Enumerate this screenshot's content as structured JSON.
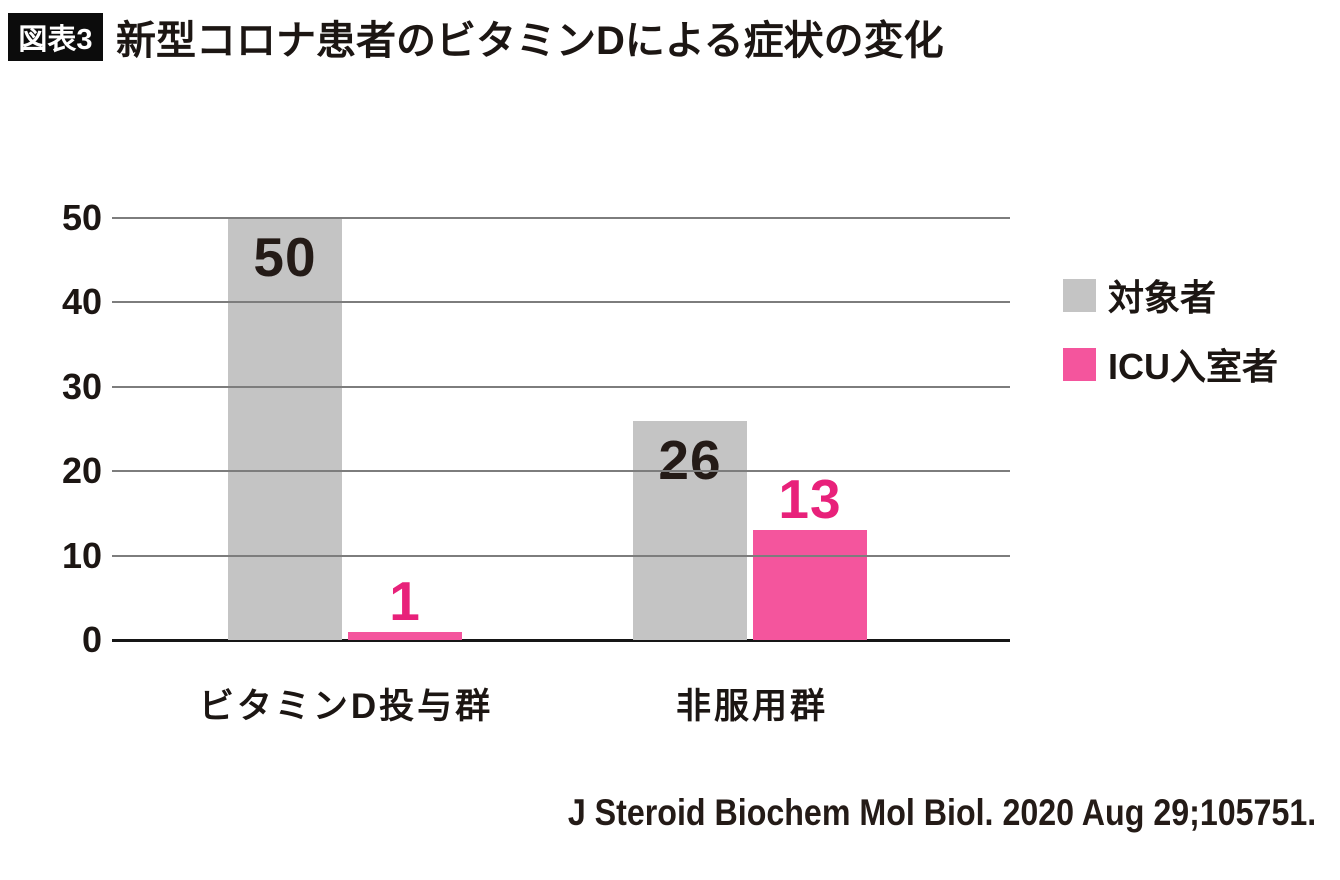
{
  "header": {
    "badge": "図表3",
    "title": "新型コロナ患者のビタミンDによる症状の変化"
  },
  "chart_data": {
    "type": "bar",
    "title": "新型コロナ患者のビタミンDによる症状の変化",
    "categories": [
      "ビタミンD投与群",
      "非服用群"
    ],
    "series": [
      {
        "name": "対象者",
        "values": [
          50,
          26
        ],
        "color": "#c4c4c4",
        "label_color": "#241b17"
      },
      {
        "name": "ICU入室者",
        "values": [
          1,
          13
        ],
        "color": "#f4559d",
        "label_color": "#e8217a"
      }
    ],
    "xlabel": "",
    "ylabel": "",
    "ylim": [
      0,
      50
    ],
    "yticks": [
      0,
      10,
      20,
      30,
      40,
      50
    ],
    "grid": true,
    "legend_position": "right",
    "gridline_color": "#7d7d7d",
    "axis_color": "#161616"
  },
  "source": "J Steroid Biochem Mol Biol.  2020 Aug 29;105751."
}
